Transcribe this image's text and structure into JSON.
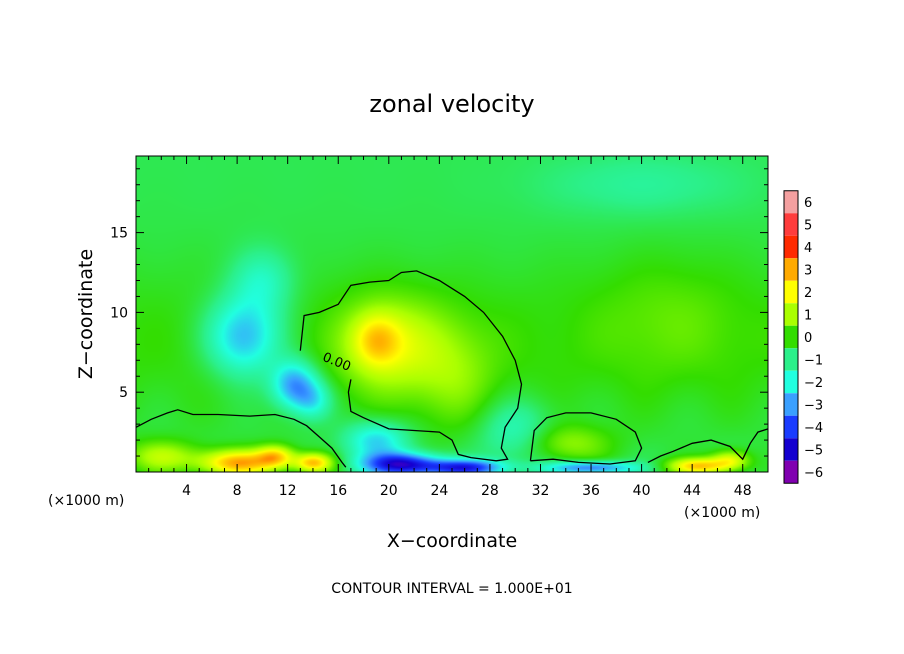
{
  "chart_data": {
    "type": "heatmap",
    "title": "zonal velocity",
    "xlabel": "X−coordinate",
    "ylabel": "Z−coordinate",
    "x_unit_left": "(×1000 m)",
    "x_unit_right": "(×1000 m)",
    "xlim": [
      0,
      50
    ],
    "ylim": [
      0,
      19.8
    ],
    "x_ticks": [
      4,
      8,
      12,
      16,
      20,
      24,
      28,
      32,
      36,
      40,
      44,
      48
    ],
    "x_tick_labels": [
      "4",
      "8",
      "12",
      "16",
      "20",
      "24",
      "28",
      "32",
      "36",
      "40",
      "44",
      "48"
    ],
    "y_ticks": [
      5,
      10,
      15
    ],
    "y_tick_labels": [
      "5",
      "10",
      "15"
    ],
    "colorbar": {
      "levels": [
        6,
        5,
        4,
        3,
        2,
        1,
        0,
        -1,
        -2,
        -3,
        -4,
        -5,
        -6
      ],
      "labels": [
        "6",
        "5",
        "4",
        "3",
        "2",
        "1",
        "0",
        "−1",
        "−2",
        "−3",
        "−4",
        "−5",
        "−6"
      ],
      "colors": [
        "#f4a0a0",
        "#ff3c3c",
        "#ff2a00",
        "#ffaa00",
        "#ffff00",
        "#aaff00",
        "#33dd00",
        "#2bf08a",
        "#21ffe0",
        "#3aa0ff",
        "#1a3cff",
        "#1400d0",
        "#8000b0"
      ]
    },
    "field_base_value": -0.6,
    "features": [
      {
        "x": 8.5,
        "z": 8.5,
        "sx": 3.0,
        "sz": 2.5,
        "value": -2.6
      },
      {
        "x": 12.5,
        "z": 5.5,
        "sx": 1.8,
        "sz": 1.5,
        "value": -2.8
      },
      {
        "x": 14.0,
        "z": 4.5,
        "sx": 1.5,
        "sz": 1.2,
        "value": -1.5
      },
      {
        "x": 10.0,
        "z": 12.0,
        "sx": 2.5,
        "sz": 2.0,
        "value": -1.2
      },
      {
        "x": 20.0,
        "z": 8.0,
        "sx": 4.0,
        "sz": 3.0,
        "value": 1.6
      },
      {
        "x": 19.0,
        "z": 8.3,
        "sx": 1.8,
        "sz": 1.6,
        "value": 1.5
      },
      {
        "x": 25.0,
        "z": 6.0,
        "sx": 3.5,
        "sz": 3.5,
        "value": 0.9
      },
      {
        "x": 8.0,
        "z": 0.6,
        "sx": 3.0,
        "sz": 0.8,
        "value": 3.4
      },
      {
        "x": 11.0,
        "z": 1.0,
        "sx": 1.5,
        "sz": 0.7,
        "value": 2.6
      },
      {
        "x": 2.0,
        "z": 1.0,
        "sx": 3.0,
        "sz": 1.0,
        "value": 1.6
      },
      {
        "x": 14.0,
        "z": 0.6,
        "sx": 1.5,
        "sz": 0.6,
        "value": 3.2
      },
      {
        "x": 21.0,
        "z": 0.5,
        "sx": 3.0,
        "sz": 0.7,
        "value": -4.4
      },
      {
        "x": 26.0,
        "z": 0.3,
        "sx": 3.0,
        "sz": 0.5,
        "value": -3.8
      },
      {
        "x": 19.0,
        "z": 2.0,
        "sx": 2.5,
        "sz": 1.2,
        "value": -2.0
      },
      {
        "x": 34.0,
        "z": 1.8,
        "sx": 3.5,
        "sz": 1.2,
        "value": 1.3
      },
      {
        "x": 36.0,
        "z": 0.3,
        "sx": 3.5,
        "sz": 0.4,
        "value": -3.0
      },
      {
        "x": 44.5,
        "z": 0.4,
        "sx": 2.5,
        "sz": 0.5,
        "value": 3.0
      },
      {
        "x": 47.0,
        "z": 0.8,
        "sx": 1.5,
        "sz": 0.6,
        "value": 2.0
      },
      {
        "x": 30.0,
        "z": 2.5,
        "sx": 3.0,
        "sz": 2.0,
        "value": -1.2
      },
      {
        "x": 40.0,
        "z": 18.0,
        "sx": 8.0,
        "sz": 2.0,
        "value": -0.6
      },
      {
        "x": 42.0,
        "z": 10.0,
        "sx": 6.0,
        "sz": 4.0,
        "value": 0.5
      }
    ],
    "contour_zero": [
      [
        [
          0,
          2.8
        ],
        [
          1.2,
          3.3
        ],
        [
          2.5,
          3.7
        ],
        [
          3.3,
          3.9
        ],
        [
          4.5,
          3.6
        ],
        [
          6.5,
          3.6
        ],
        [
          9.0,
          3.5
        ],
        [
          11.0,
          3.6
        ],
        [
          12.5,
          3.3
        ],
        [
          13.5,
          2.9
        ],
        [
          14.5,
          2.2
        ],
        [
          15.5,
          1.5
        ],
        [
          16.3,
          0.6
        ],
        [
          16.6,
          0.3
        ]
      ],
      [
        [
          13.0,
          7.6
        ],
        [
          13.3,
          9.8
        ],
        [
          14.5,
          10.0
        ],
        [
          16.0,
          10.5
        ],
        [
          17.0,
          11.7
        ],
        [
          18.5,
          11.9
        ],
        [
          20.0,
          12.0
        ],
        [
          21.0,
          12.5
        ],
        [
          22.2,
          12.6
        ],
        [
          24.0,
          12.0
        ],
        [
          26.0,
          11.0
        ],
        [
          27.5,
          10.0
        ],
        [
          29.0,
          8.5
        ],
        [
          30.0,
          7.0
        ],
        [
          30.5,
          5.5
        ],
        [
          30.2,
          4.0
        ],
        [
          29.2,
          2.8
        ],
        [
          28.9,
          1.5
        ],
        [
          29.4,
          0.8
        ],
        [
          28.5,
          0.7
        ],
        [
          26.5,
          0.9
        ],
        [
          25.5,
          1.1
        ],
        [
          25.0,
          2.0
        ],
        [
          24.0,
          2.5
        ],
        [
          22.0,
          2.6
        ],
        [
          20.0,
          2.7
        ],
        [
          18.0,
          3.4
        ],
        [
          17.0,
          3.8
        ],
        [
          16.8,
          5.0
        ],
        [
          17.0,
          5.8
        ]
      ],
      [
        [
          31.2,
          0.7
        ],
        [
          31.5,
          2.6
        ],
        [
          32.5,
          3.4
        ],
        [
          34.0,
          3.7
        ],
        [
          36.0,
          3.7
        ],
        [
          38.0,
          3.3
        ],
        [
          39.5,
          2.5
        ],
        [
          40.0,
          1.5
        ],
        [
          39.5,
          0.7
        ],
        [
          37.5,
          0.5
        ],
        [
          35.0,
          0.6
        ],
        [
          33.0,
          0.8
        ],
        [
          31.2,
          0.7
        ]
      ],
      [
        [
          40.5,
          0.6
        ],
        [
          41.5,
          1.0
        ],
        [
          42.5,
          1.3
        ],
        [
          44.0,
          1.8
        ],
        [
          45.5,
          2.0
        ],
        [
          47.0,
          1.6
        ],
        [
          48.0,
          0.8
        ],
        [
          48.6,
          1.8
        ],
        [
          49.2,
          2.5
        ],
        [
          50.0,
          2.7
        ]
      ]
    ],
    "contour_label": {
      "text": "0.00",
      "x": 14.7,
      "z": 7.0
    },
    "annotation": "CONTOUR INTERVAL = 1.000E+01"
  }
}
